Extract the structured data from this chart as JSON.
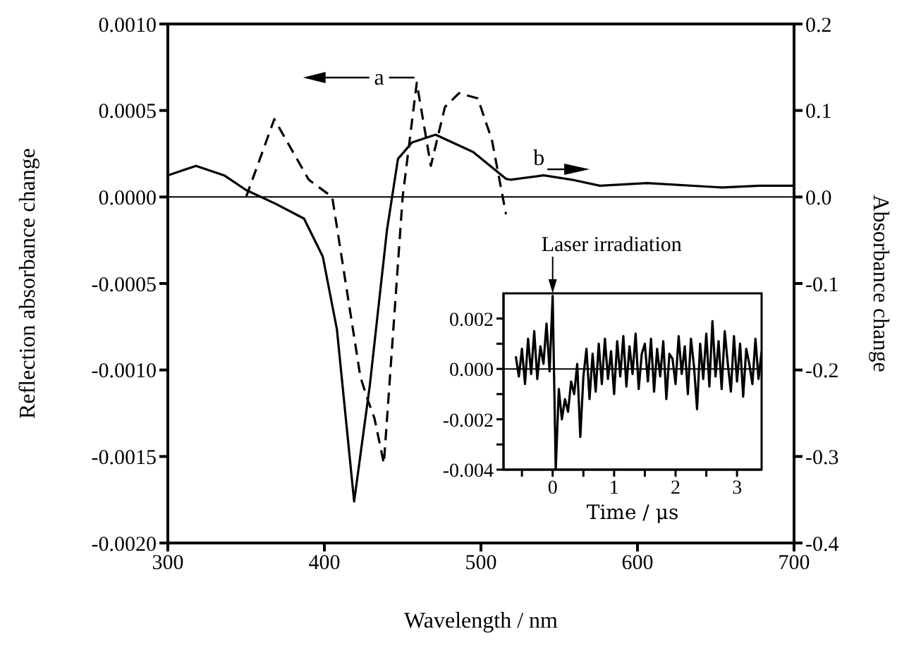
{
  "chart_data": [
    {
      "type": "line",
      "xlabel": "Wavelength / nm",
      "ylabel": "Reflection absorbance change",
      "y2label": "Absorbance change",
      "xlim": [
        300,
        700
      ],
      "xticks": [
        300,
        400,
        500,
        600,
        700
      ],
      "ylim": [
        -0.002,
        0.001
      ],
      "yticks": [
        {
          "value": 0.001,
          "label": "0.0010"
        },
        {
          "value": 0.0005,
          "label": "0.0005"
        },
        {
          "value": 0,
          "label": "0.0000"
        },
        {
          "value": -0.0005,
          "label": "-0.0005"
        },
        {
          "value": -0.001,
          "label": "-0.0010"
        },
        {
          "value": -0.0015,
          "label": "-0.0015"
        },
        {
          "value": -0.002,
          "label": "-0.0020"
        }
      ],
      "y2lim": [
        -0.4,
        0.2
      ],
      "y2ticks": [
        0.2,
        0.1,
        {
          "value": 0,
          "label": "0.0"
        },
        -0.1,
        -0.2,
        -0.3,
        -0.4
      ],
      "grid": false,
      "legend": false,
      "marker": "none",
      "ref_lines": [
        {
          "axis": "y",
          "value": 0,
          "color": "#000000"
        }
      ],
      "annotations": [
        "a",
        "b"
      ],
      "series": [
        {
          "color": "#000000",
          "line_style": "dashed",
          "x": [
            350,
            368,
            390,
            405,
            423,
            428,
            432,
            438,
            450,
            459,
            468,
            477,
            486,
            498,
            507,
            516
          ],
          "values": [
            0,
            0.00045,
            0.0001,
            0,
            -0.00104,
            -0.00118,
            -0.00128,
            -0.00154,
            0,
            0.00066,
            0.00018,
            0.00052,
            0.0006,
            0.00057,
            0.00033,
            -0.0001
          ]
        },
        {
          "color": "#000000",
          "line_style": "solid",
          "axis": "y2",
          "x": [
            300,
            318,
            336,
            350,
            369,
            387,
            399,
            408,
            419,
            429,
            440,
            447,
            456,
            471,
            495,
            516,
            519,
            540,
            558,
            576,
            606,
            654,
            678,
            700
          ],
          "values": [
            0.025,
            0.036,
            0.025,
            0.008,
            -0.008,
            -0.025,
            -0.069,
            -0.153,
            -0.352,
            -0.218,
            -0.038,
            0.044,
            0.063,
            0.072,
            0.052,
            0.021,
            0.02,
            0.025,
            0.02,
            0.013,
            0.016,
            0.011,
            0.013,
            0.013
          ]
        }
      ]
    },
    {
      "type": "line",
      "xlabel": "Time / μs",
      "xlim": [
        -0.8,
        3.4
      ],
      "xticks": [
        {
          "value": -0.5,
          "label": null
        },
        0,
        {
          "value": 0.5,
          "label": null
        },
        1,
        {
          "value": 1.5,
          "label": null
        },
        2,
        {
          "value": 2.5,
          "label": null
        },
        3
      ],
      "ylim": [
        -0.004,
        0.003
      ],
      "yticks": [
        {
          "value": -0.004,
          "label": "-0.004"
        },
        {
          "value": -0.003,
          "label": null
        },
        {
          "value": -0.002,
          "label": "-0.002"
        },
        {
          "value": -0.001,
          "label": null
        },
        {
          "value": 0,
          "label": "0.000"
        },
        {
          "value": 0.001,
          "label": null
        },
        {
          "value": 0.002,
          "label": "0.002"
        }
      ],
      "grid": false,
      "legend": false,
      "marker": "none",
      "ref_lines": [
        {
          "axis": "y",
          "value": 0,
          "color": "#000000"
        }
      ],
      "annotations": [
        {
          "text": "Laser irradiation",
          "x": 0,
          "y": 0.003
        }
      ],
      "series": [
        {
          "color": "#000000",
          "line_style": "solid",
          "x": [
            -0.6,
            -0.55,
            -0.5,
            -0.45,
            -0.4,
            -0.35,
            -0.3,
            -0.25,
            -0.2,
            -0.15,
            -0.1,
            -0.05,
            0,
            0.05,
            0.1,
            0.15,
            0.2,
            0.25,
            0.3,
            0.35,
            0.4,
            0.45,
            0.5,
            0.55,
            0.6,
            0.65,
            0.7,
            0.75,
            0.8,
            0.85,
            0.9,
            0.95,
            1.0,
            1.05,
            1.1,
            1.15,
            1.2,
            1.25,
            1.3,
            1.35,
            1.4,
            1.45,
            1.5,
            1.55,
            1.6,
            1.65,
            1.7,
            1.75,
            1.8,
            1.85,
            1.9,
            1.95,
            2.0,
            2.05,
            2.1,
            2.15,
            2.2,
            2.25,
            2.3,
            2.35,
            2.4,
            2.45,
            2.5,
            2.55,
            2.6,
            2.65,
            2.7,
            2.75,
            2.8,
            2.85,
            2.9,
            2.95,
            3.0,
            3.05,
            3.1,
            3.15,
            3.2,
            3.25,
            3.3,
            3.35,
            3.4
          ],
          "values": [
            0.0005,
            -0.0003,
            0.0008,
            -0.0006,
            0.0012,
            -0.0002,
            0.0015,
            -0.0004,
            0.0009,
            0.0002,
            0.0018,
            -0.0001,
            0.0029,
            -0.004,
            -0.0008,
            -0.002,
            -0.0012,
            -0.0017,
            -0.0005,
            -0.001,
            0.0002,
            -0.0027,
            -0.0003,
            0.0008,
            -0.0012,
            0.0006,
            -0.0009,
            0.001,
            -0.0006,
            0.0012,
            -0.0004,
            0.0007,
            -0.001,
            0.0011,
            -0.0003,
            0.0013,
            -0.0007,
            0.0009,
            -0.0002,
            0.0014,
            -0.0008,
            0.0006,
            0.001,
            -0.0005,
            0.0012,
            -0.0009,
            0.0008,
            -0.0003,
            0.0011,
            -0.0012,
            0.0006,
            0.0004,
            -0.0006,
            0.0013,
            -0.0002,
            0.0009,
            -0.001,
            0.0012,
            0.0001,
            -0.0016,
            0.001,
            -0.0004,
            0.0014,
            -0.0007,
            0.0019,
            -0.0003,
            0.0011,
            -0.0008,
            0.0015,
            0.0002,
            -0.0009,
            0.0013,
            -0.0005,
            0.001,
            -0.0011,
            0.0008,
            0.0002,
            -0.0006,
            0.0012,
            -0.0004,
            0.0007
          ]
        }
      ]
    }
  ]
}
